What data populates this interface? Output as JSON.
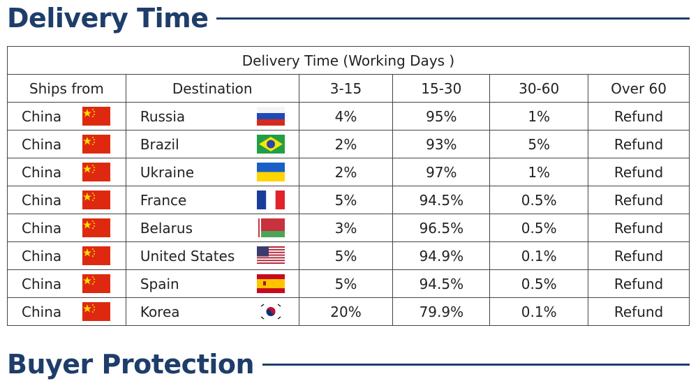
{
  "header": {
    "title": "Delivery Time"
  },
  "table": {
    "caption": "Delivery Time (Working Days )",
    "columns": [
      "Ships from",
      "Destination",
      "3-15",
      "15-30",
      "30-60",
      "Over 60"
    ],
    "rows": [
      [
        "China",
        "Russia",
        "4%",
        "95%",
        "1%",
        "Refund"
      ],
      [
        "China",
        "Brazil",
        "2%",
        "93%",
        "5%",
        "Refund"
      ],
      [
        "China",
        "Ukraine",
        "2%",
        "97%",
        "1%",
        "Refund"
      ],
      [
        "China",
        "France",
        "5%",
        "94.5%",
        "0.5%",
        "Refund"
      ],
      [
        "China",
        "Belarus",
        "3%",
        "96.5%",
        "0.5%",
        "Refund"
      ],
      [
        "China",
        "United States",
        "5%",
        "94.9%",
        "0.1%",
        "Refund"
      ],
      [
        "China",
        "Spain",
        "5%",
        "94.5%",
        "0.5%",
        "Refund"
      ],
      [
        "China",
        "Korea",
        "20%",
        "79.9%",
        "0.1%",
        "Refund"
      ]
    ]
  },
  "footer": {
    "title": "Buyer Protection"
  }
}
